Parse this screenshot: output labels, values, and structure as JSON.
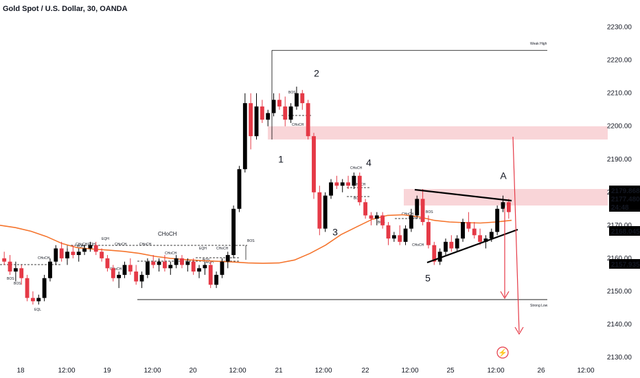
{
  "header": {
    "title": "Gold Spot / U.S. Dollar, 30, OANDA"
  },
  "colors": {
    "up": "#000000",
    "down": "#e53946",
    "ema": "#f5742c",
    "zone": "#f9d5d8",
    "priceTag": "#000000"
  },
  "chart_data": {
    "type": "candlestick",
    "ylim": [
      2130,
      2232
    ],
    "y_ticks": [
      2130,
      2140,
      2150,
      2160,
      2170,
      2180,
      2190,
      2200,
      2210,
      2220,
      2230
    ],
    "x_ticks": [
      "18",
      "12:00",
      "19",
      "12:00",
      "20",
      "12:00",
      "21",
      "12:00",
      "22",
      "12:00",
      "25",
      "12:00",
      "26",
      "12:00"
    ],
    "price_tags": [
      {
        "label": "2179.868",
        "value": 2179.868
      },
      {
        "label": "2177.480",
        "value": 2177.48
      },
      {
        "label": "24:48",
        "value": 2175.3
      },
      {
        "label": "2168.045",
        "value": 2168.045
      },
      {
        "label": "2157.935",
        "value": 2157.935
      }
    ],
    "levels": [
      {
        "label": "Weak High",
        "value": 2223
      },
      {
        "label": "Strong Low",
        "value": 2147.5
      }
    ],
    "wave_labels": [
      {
        "label": "1",
        "value": 2189
      },
      {
        "label": "2",
        "value": 2215
      },
      {
        "label": "3",
        "value": 2167
      },
      {
        "label": "4",
        "value": 2188
      },
      {
        "label": "5",
        "value": 2153
      },
      {
        "label": "A",
        "value": 2184
      }
    ],
    "structure_labels": [
      "CHoCH",
      "BOS",
      "EQH",
      "EQL",
      "CHoCH",
      "CHoCH",
      "BOS",
      "CHoCH",
      "CHoCH",
      "EQH",
      "CHoCH",
      "CHoCH",
      "BOS",
      "CHoCH",
      "CHoCH",
      "BOS",
      "CHoCH",
      "BOS",
      "CHoCH",
      "CHoCH",
      "CHoCH",
      "BOS",
      "EQH",
      "EQH",
      "BOS",
      "EQH",
      "BOS",
      "BOS"
    ],
    "zones": [
      {
        "from": 2196,
        "to": 2200
      },
      {
        "from": 2176,
        "to": 2181
      }
    ],
    "ema": [
      2170,
      2169.3,
      2168.2,
      2166.6,
      2164.5,
      2163.2,
      2162.8,
      2162.5,
      2162.1,
      2161.5,
      2160.6,
      2160,
      2159.6,
      2159.3,
      2159.1,
      2158.9,
      2158.6,
      2158.5,
      2158.6,
      2159.5,
      2161.5,
      2164,
      2167.2,
      2169.5,
      2171.8,
      2173,
      2173.2,
      2172.6,
      2171.5,
      2171,
      2170.8,
      2170.7,
      2171,
      2171.5
    ],
    "ohlc": [
      [
        2160,
        2162,
        2158,
        2159
      ],
      [
        2159,
        2161,
        2155,
        2156
      ],
      [
        2156,
        2159,
        2153,
        2157
      ],
      [
        2157,
        2158,
        2152,
        2154
      ],
      [
        2154,
        2155,
        2147,
        2148
      ],
      [
        2148,
        2150,
        2146,
        2147
      ],
      [
        2147,
        2149,
        2146,
        2148
      ],
      [
        2148,
        2155,
        2147,
        2154
      ],
      [
        2154,
        2160,
        2153,
        2159
      ],
      [
        2159,
        2164,
        2158,
        2163
      ],
      [
        2163,
        2165,
        2159,
        2160
      ],
      [
        2160,
        2163,
        2158,
        2162
      ],
      [
        2162,
        2164,
        2160,
        2161
      ],
      [
        2161,
        2163,
        2159,
        2162
      ],
      [
        2162,
        2164,
        2161,
        2163
      ],
      [
        2163,
        2165,
        2162,
        2164
      ],
      [
        2164,
        2165,
        2161,
        2162
      ],
      [
        2162,
        2163,
        2159,
        2160
      ],
      [
        2160,
        2161,
        2156,
        2157
      ],
      [
        2157,
        2158,
        2153,
        2154
      ],
      [
        2154,
        2156,
        2151,
        2155
      ],
      [
        2155,
        2159,
        2154,
        2158
      ],
      [
        2158,
        2160,
        2155,
        2156
      ],
      [
        2156,
        2158,
        2152,
        2153
      ],
      [
        2153,
        2156,
        2151,
        2155
      ],
      [
        2155,
        2160,
        2154,
        2159
      ],
      [
        2159,
        2161,
        2157,
        2158
      ],
      [
        2158,
        2160,
        2156,
        2159
      ],
      [
        2159,
        2161,
        2156,
        2157
      ],
      [
        2157,
        2159,
        2155,
        2158
      ],
      [
        2158,
        2161,
        2157,
        2160
      ],
      [
        2160,
        2161,
        2157,
        2158
      ],
      [
        2158,
        2160,
        2156,
        2159
      ],
      [
        2159,
        2160,
        2155,
        2156
      ],
      [
        2156,
        2158,
        2154,
        2157
      ],
      [
        2157,
        2159,
        2155,
        2158
      ],
      [
        2158,
        2159,
        2151,
        2152
      ],
      [
        2152,
        2156,
        2151,
        2155
      ],
      [
        2155,
        2160,
        2154,
        2159
      ],
      [
        2159,
        2162,
        2157,
        2161
      ],
      [
        2161,
        2176,
        2160,
        2175
      ],
      [
        2175,
        2188,
        2174,
        2187
      ],
      [
        2187,
        2210,
        2186,
        2207
      ],
      [
        2207,
        2210,
        2193,
        2197
      ],
      [
        2197,
        2210,
        2196,
        2206
      ],
      [
        2206,
        2208,
        2201,
        2202
      ],
      [
        2202,
        2205,
        2200,
        2204
      ],
      [
        2204,
        2210,
        2203,
        2208
      ],
      [
        2208,
        2210,
        2205,
        2206
      ],
      [
        2206,
        2209,
        2200,
        2202
      ],
      [
        2202,
        2207,
        2201,
        2206
      ],
      [
        2206,
        2212,
        2205,
        2210
      ],
      [
        2210,
        2211,
        2205,
        2207
      ],
      [
        2207,
        2208,
        2196,
        2197
      ],
      [
        2197,
        2198,
        2178,
        2180
      ],
      [
        2180,
        2182,
        2167,
        2169
      ],
      [
        2169,
        2180,
        2168,
        2179
      ],
      [
        2179,
        2184,
        2178,
        2183
      ],
      [
        2183,
        2185,
        2181,
        2182
      ],
      [
        2182,
        2184,
        2180,
        2183
      ],
      [
        2183,
        2185,
        2181,
        2182
      ],
      [
        2182,
        2186,
        2181,
        2185
      ],
      [
        2185,
        2186,
        2176,
        2177
      ],
      [
        2177,
        2178,
        2172,
        2173
      ],
      [
        2173,
        2174,
        2170,
        2172
      ],
      [
        2172,
        2174,
        2170,
        2173
      ],
      [
        2173,
        2174,
        2169,
        2170
      ],
      [
        2170,
        2171,
        2164,
        2166
      ],
      [
        2166,
        2168,
        2165,
        2167
      ],
      [
        2167,
        2170,
        2164,
        2165
      ],
      [
        2165,
        2170,
        2164,
        2169
      ],
      [
        2169,
        2175,
        2168,
        2173
      ],
      [
        2173,
        2179,
        2172,
        2178
      ],
      [
        2178,
        2181,
        2170,
        2171
      ],
      [
        2171,
        2173,
        2163,
        2164
      ],
      [
        2164,
        2165,
        2158,
        2159
      ],
      [
        2159,
        2163,
        2158,
        2162
      ],
      [
        2162,
        2166,
        2161,
        2165
      ],
      [
        2165,
        2167,
        2162,
        2163
      ],
      [
        2163,
        2167,
        2162,
        2166
      ],
      [
        2166,
        2172,
        2165,
        2171
      ],
      [
        2171,
        2174,
        2168,
        2169
      ],
      [
        2169,
        2171,
        2166,
        2167
      ],
      [
        2167,
        2169,
        2164,
        2165
      ],
      [
        2165,
        2167,
        2163,
        2166
      ],
      [
        2166,
        2169,
        2165,
        2168
      ],
      [
        2168,
        2176,
        2167,
        2175
      ],
      [
        2175,
        2179,
        2174,
        2177
      ],
      [
        2177,
        2178,
        2172,
        2174
      ]
    ]
  }
}
